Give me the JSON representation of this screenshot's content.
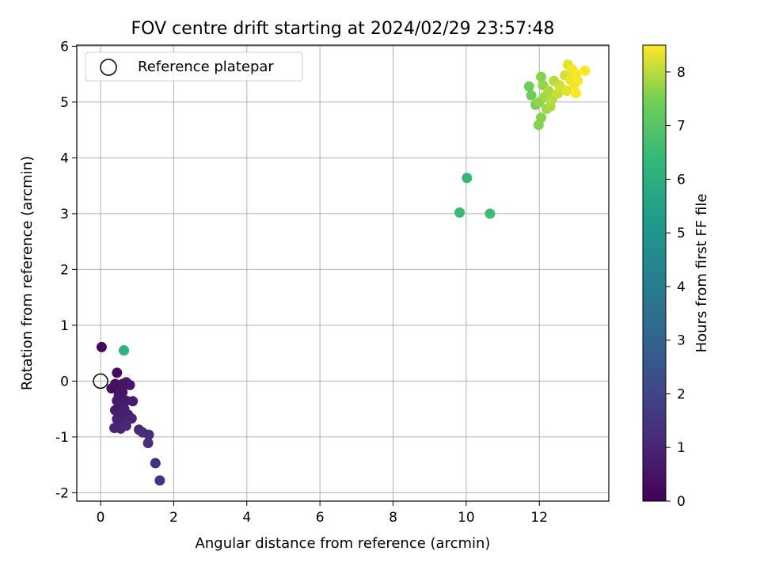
{
  "chart_data": {
    "type": "scatter",
    "title": "FOV centre drift starting at 2024/02/29 23:57:48",
    "xlabel": "Angular distance from reference (arcmin)",
    "ylabel": "Rotation from reference (arcmin)",
    "xlim": [
      -0.65,
      13.9
    ],
    "ylim": [
      -2.15,
      6.02
    ],
    "xticks": [
      "0",
      "2",
      "4",
      "6",
      "8",
      "10",
      "12"
    ],
    "yticks": [
      "-2",
      "-1",
      "0",
      "1",
      "2",
      "3",
      "4",
      "5",
      "6"
    ],
    "grid": true,
    "legend": {
      "position": "top-left",
      "entries": [
        "Reference platepar"
      ]
    },
    "reference_point": {
      "x": 0,
      "y": 0
    },
    "colorbar": {
      "label": "Hours from first FF file",
      "colormap": "viridis",
      "range": [
        0,
        8.5
      ],
      "ticks": [
        "0",
        "1",
        "2",
        "3",
        "4",
        "5",
        "6",
        "7",
        "8"
      ]
    },
    "series": [
      {
        "points": [
          {
            "x": 0.03,
            "y": 0.61,
            "t": 0.2
          },
          {
            "x": 0.45,
            "y": 0.15,
            "t": 0.3
          },
          {
            "x": 0.3,
            "y": -0.13,
            "t": 0.3
          },
          {
            "x": 0.4,
            "y": -0.05,
            "t": 0.4
          },
          {
            "x": 0.55,
            "y": -0.1,
            "t": 0.4
          },
          {
            "x": 0.6,
            "y": -0.05,
            "t": 0.5
          },
          {
            "x": 0.7,
            "y": -0.02,
            "t": 0.5
          },
          {
            "x": 0.8,
            "y": -0.07,
            "t": 0.6
          },
          {
            "x": 0.5,
            "y": -0.25,
            "t": 0.5
          },
          {
            "x": 0.6,
            "y": -0.2,
            "t": 0.6
          },
          {
            "x": 0.45,
            "y": -0.35,
            "t": 0.6
          },
          {
            "x": 0.55,
            "y": -0.4,
            "t": 0.7
          },
          {
            "x": 0.7,
            "y": -0.35,
            "t": 0.7
          },
          {
            "x": 0.88,
            "y": -0.36,
            "t": 0.8
          },
          {
            "x": 0.4,
            "y": -0.52,
            "t": 0.7
          },
          {
            "x": 0.5,
            "y": -0.55,
            "t": 0.8
          },
          {
            "x": 0.65,
            "y": -0.5,
            "t": 0.8
          },
          {
            "x": 0.75,
            "y": -0.6,
            "t": 0.9
          },
          {
            "x": 0.45,
            "y": -0.68,
            "t": 0.9
          },
          {
            "x": 0.6,
            "y": -0.7,
            "t": 0.9
          },
          {
            "x": 0.85,
            "y": -0.67,
            "t": 1.0
          },
          {
            "x": 0.38,
            "y": -0.84,
            "t": 1.0
          },
          {
            "x": 0.55,
            "y": -0.85,
            "t": 1.0
          },
          {
            "x": 0.7,
            "y": -0.8,
            "t": 1.1
          },
          {
            "x": 1.05,
            "y": -0.87,
            "t": 1.1
          },
          {
            "x": 1.15,
            "y": -0.92,
            "t": 1.2
          },
          {
            "x": 1.32,
            "y": -0.96,
            "t": 1.2
          },
          {
            "x": 1.3,
            "y": -1.11,
            "t": 1.3
          },
          {
            "x": 1.5,
            "y": -1.47,
            "t": 1.3
          },
          {
            "x": 1.62,
            "y": -1.78,
            "t": 1.4
          },
          {
            "x": 0.64,
            "y": 0.55,
            "t": 6.0
          },
          {
            "x": 0.64,
            "y": 0.55,
            "t": 6.2
          },
          {
            "x": 9.82,
            "y": 3.02,
            "t": 6.5
          },
          {
            "x": 10.02,
            "y": 3.64,
            "t": 6.4
          },
          {
            "x": 10.65,
            "y": 3.0,
            "t": 6.6
          },
          {
            "x": 11.72,
            "y": 5.28,
            "t": 7.4
          },
          {
            "x": 11.78,
            "y": 5.12,
            "t": 7.4
          },
          {
            "x": 11.9,
            "y": 4.95,
            "t": 7.5
          },
          {
            "x": 11.98,
            "y": 4.59,
            "t": 7.6
          },
          {
            "x": 12.05,
            "y": 4.72,
            "t": 7.6
          },
          {
            "x": 12.0,
            "y": 5.0,
            "t": 7.7
          },
          {
            "x": 12.05,
            "y": 5.45,
            "t": 7.6
          },
          {
            "x": 12.1,
            "y": 5.3,
            "t": 7.7
          },
          {
            "x": 12.15,
            "y": 5.1,
            "t": 7.8
          },
          {
            "x": 12.2,
            "y": 4.88,
            "t": 7.8
          },
          {
            "x": 12.25,
            "y": 5.2,
            "t": 7.9
          },
          {
            "x": 12.3,
            "y": 4.92,
            "t": 7.9
          },
          {
            "x": 12.35,
            "y": 5.05,
            "t": 8.0
          },
          {
            "x": 12.4,
            "y": 5.38,
            "t": 8.0
          },
          {
            "x": 12.5,
            "y": 5.15,
            "t": 8.1
          },
          {
            "x": 12.55,
            "y": 5.3,
            "t": 8.1
          },
          {
            "x": 12.6,
            "y": 5.25,
            "t": 8.2
          },
          {
            "x": 12.7,
            "y": 5.48,
            "t": 8.2
          },
          {
            "x": 12.75,
            "y": 5.2,
            "t": 8.3
          },
          {
            "x": 12.78,
            "y": 5.67,
            "t": 8.3
          },
          {
            "x": 12.85,
            "y": 5.4,
            "t": 8.35
          },
          {
            "x": 12.9,
            "y": 5.58,
            "t": 8.4
          },
          {
            "x": 12.95,
            "y": 5.32,
            "t": 8.4
          },
          {
            "x": 13.0,
            "y": 5.5,
            "t": 8.45
          },
          {
            "x": 13.05,
            "y": 5.38,
            "t": 8.45
          },
          {
            "x": 13.0,
            "y": 5.16,
            "t": 8.5
          },
          {
            "x": 13.25,
            "y": 5.56,
            "t": 8.5
          }
        ]
      }
    ]
  }
}
